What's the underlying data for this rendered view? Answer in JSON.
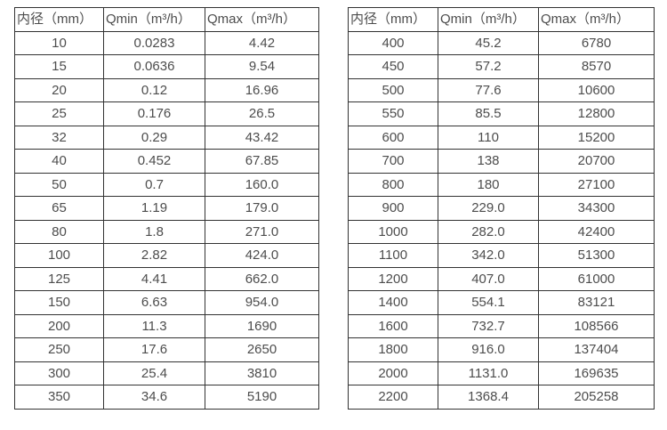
{
  "page": {
    "background": "#ffffff",
    "border_color": "#333333",
    "text_color": "#4d4d4d"
  },
  "tables": [
    {
      "id": "small-diameters",
      "headers": [
        "内径（mm）",
        "Qmin（m³/h）",
        "Qmax（m³/h）"
      ],
      "rows": [
        [
          "10",
          "0.0283",
          "4.42"
        ],
        [
          "15",
          "0.0636",
          "9.54"
        ],
        [
          "20",
          "0.12",
          "16.96"
        ],
        [
          "25",
          "0.176",
          "26.5"
        ],
        [
          "32",
          "0.29",
          "43.42"
        ],
        [
          "40",
          "0.452",
          "67.85"
        ],
        [
          "50",
          "0.7",
          "160.0"
        ],
        [
          "65",
          "1.19",
          "179.0"
        ],
        [
          "80",
          "1.8",
          "271.0"
        ],
        [
          "100",
          "2.82",
          "424.0"
        ],
        [
          "125",
          "4.41",
          "662.0"
        ],
        [
          "150",
          "6.63",
          "954.0"
        ],
        [
          "200",
          "11.3",
          "1690"
        ],
        [
          "250",
          "17.6",
          "2650"
        ],
        [
          "300",
          "25.4",
          "3810"
        ],
        [
          "350",
          "34.6",
          "5190"
        ]
      ]
    },
    {
      "id": "large-diameters",
      "headers": [
        "内径（mm）",
        "Qmin（m³/h）",
        "Qmax（m³/h）"
      ],
      "rows": [
        [
          "400",
          "45.2",
          "6780"
        ],
        [
          "450",
          "57.2",
          "8570"
        ],
        [
          "500",
          "77.6",
          "10600"
        ],
        [
          "550",
          "85.5",
          "12800"
        ],
        [
          "600",
          "110",
          "15200"
        ],
        [
          "700",
          "138",
          "20700"
        ],
        [
          "800",
          "180",
          "27100"
        ],
        [
          "900",
          "229.0",
          "34300"
        ],
        [
          "1000",
          "282.0",
          "42400"
        ],
        [
          "1100",
          "342.0",
          "51300"
        ],
        [
          "1200",
          "407.0",
          "61000"
        ],
        [
          "1400",
          "554.1",
          "83121"
        ],
        [
          "1600",
          "732.7",
          "108566"
        ],
        [
          "1800",
          "916.0",
          "137404"
        ],
        [
          "2000",
          "1131.0",
          "169635"
        ],
        [
          "2200",
          "1368.4",
          "205258"
        ]
      ]
    }
  ]
}
